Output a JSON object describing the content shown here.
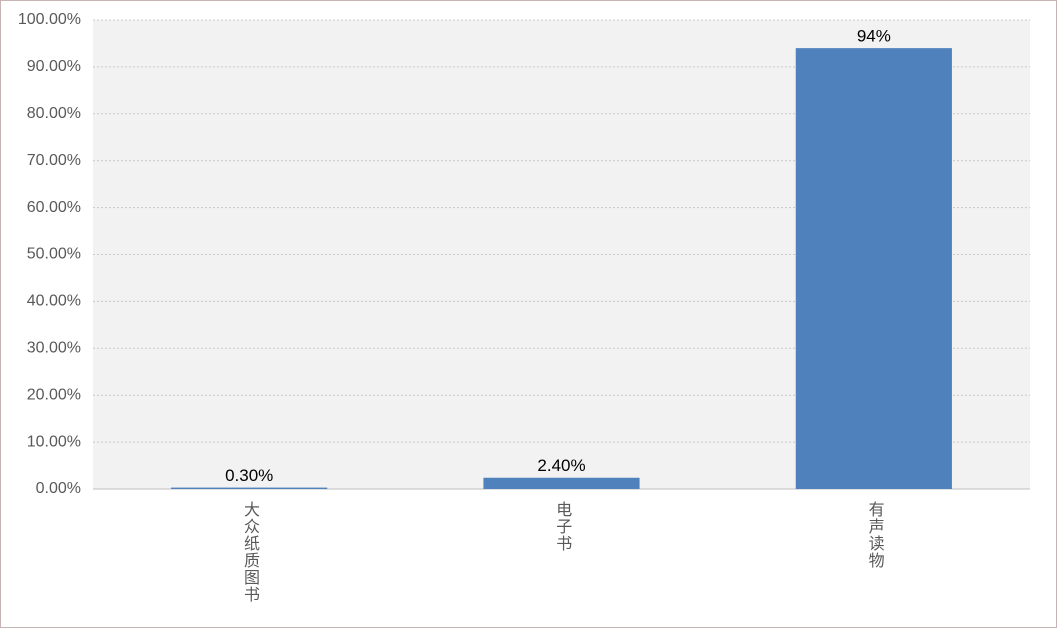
{
  "chart_data": {
    "type": "bar",
    "categories": [
      "大众纸质图书",
      "电子书",
      "有声读物"
    ],
    "values": [
      0.3,
      2.4,
      94
    ],
    "value_labels": [
      "0.30%",
      "2.40%",
      "94%"
    ],
    "color": "#4f81bd",
    "ylim": [
      0,
      100
    ],
    "yticks": [
      {
        "value": 0,
        "label": "0.00%"
      },
      {
        "value": 10,
        "label": "10.00%"
      },
      {
        "value": 20,
        "label": "20.00%"
      },
      {
        "value": 30,
        "label": "30.00%"
      },
      {
        "value": 40,
        "label": "40.00%"
      },
      {
        "value": 50,
        "label": "50.00%"
      },
      {
        "value": 60,
        "label": "60.00%"
      },
      {
        "value": 70,
        "label": "70.00%"
      },
      {
        "value": 80,
        "label": "80.00%"
      },
      {
        "value": 90,
        "label": "90.00%"
      },
      {
        "value": 100,
        "label": "100.00%"
      }
    ],
    "grid": true
  }
}
